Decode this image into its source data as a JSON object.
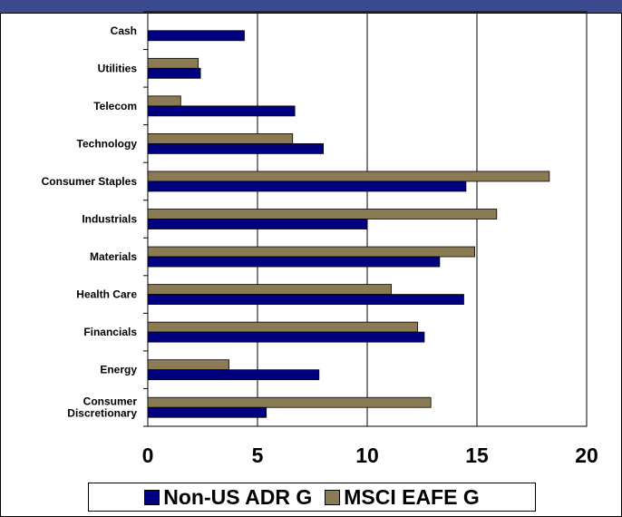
{
  "chart_data": {
    "type": "bar",
    "orientation": "horizontal",
    "categories": [
      "Cash",
      "Utilities",
      "Telecom",
      "Technology",
      "Consumer Staples",
      "Industrials",
      "Materials",
      "Health Care",
      "Financials",
      "Energy",
      "Consumer Discretionary"
    ],
    "category_lines": [
      [
        "Cash"
      ],
      [
        "Utilities"
      ],
      [
        "Telecom"
      ],
      [
        "Technology"
      ],
      [
        "Consumer Staples"
      ],
      [
        "Industrials"
      ],
      [
        "Materials"
      ],
      [
        "Health Care"
      ],
      [
        "Financials"
      ],
      [
        "Energy"
      ],
      [
        "Consumer",
        "Discretionary"
      ]
    ],
    "series": [
      {
        "name": "Non-US ADR G",
        "color": "#000080",
        "values": [
          4.4,
          2.4,
          6.7,
          8.0,
          14.5,
          10.0,
          13.3,
          14.4,
          12.6,
          7.8,
          5.4
        ]
      },
      {
        "name": "MSCI EAFE G",
        "color": "#8b7b55",
        "values": [
          null,
          2.3,
          1.5,
          6.6,
          18.3,
          15.9,
          14.9,
          11.1,
          12.3,
          3.7,
          12.9
        ]
      }
    ],
    "xlim": [
      0,
      20
    ],
    "xticks": [
      0,
      5,
      10,
      15,
      20
    ],
    "grid": true,
    "legend_position": "bottom"
  }
}
